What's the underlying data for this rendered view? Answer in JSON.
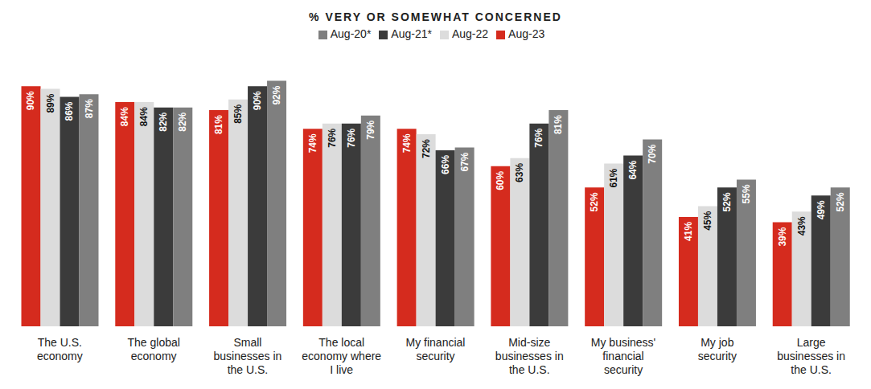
{
  "chart_data": {
    "type": "bar",
    "title": "% VERY OR SOMEWHAT CONCERNED",
    "categories": [
      "The U.S. economy",
      "The global economy",
      "Small businesses in the U.S.",
      "The local economy where I live",
      "My financial security",
      "Mid-size businesses in the U.S.",
      "My business' financial security",
      "My job security",
      "Large businesses in the U.S."
    ],
    "series": [
      {
        "name": "Aug-23",
        "color": "#d52b1e",
        "values": [
          90,
          84,
          81,
          74,
          74,
          60,
          52,
          41,
          39
        ],
        "value_labels": [
          "90%",
          "84%",
          "81%",
          "74%",
          "74%",
          "60%",
          "52%",
          "41%",
          "39%"
        ]
      },
      {
        "name": "Aug-22",
        "color": "#dcdcdc",
        "values": [
          89,
          84,
          85,
          76,
          72,
          63,
          61,
          45,
          43
        ],
        "value_labels": [
          "89%",
          "84%",
          "85%",
          "76%",
          "72%",
          "63%",
          "61%",
          "45%",
          "43%"
        ]
      },
      {
        "name": "Aug-21*",
        "color": "#3b3b3b",
        "values": [
          86,
          82,
          90,
          76,
          66,
          76,
          64,
          52,
          49
        ],
        "value_labels": [
          "86%",
          "82%",
          "90%",
          "76%",
          "66%",
          "76%",
          "64%",
          "52%",
          "49%"
        ]
      },
      {
        "name": "Aug-20*",
        "color": "#7f7f7f",
        "values": [
          87,
          82,
          92,
          79,
          67,
          81,
          70,
          55,
          52
        ],
        "value_labels": [
          "87%",
          "82%",
          "92%",
          "79%",
          "67%",
          "81%",
          "70%",
          "55%",
          "52%"
        ]
      }
    ],
    "ylim": [
      0,
      100
    ],
    "grid": false,
    "legend": "top",
    "data_labels": true,
    "tick_labels": "x"
  }
}
